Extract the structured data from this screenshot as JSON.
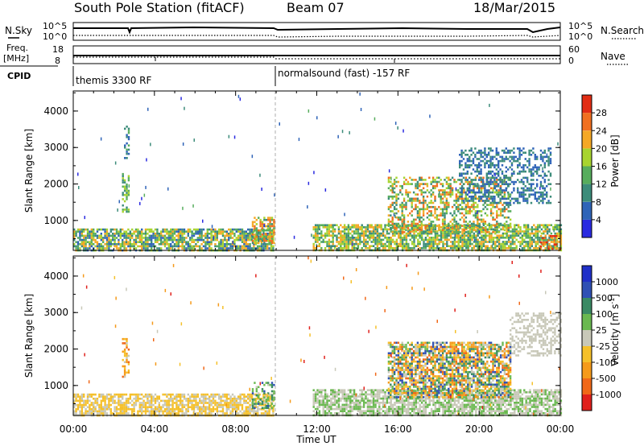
{
  "header": {
    "station": "South Pole Station (fitACF)",
    "beam": "Beam 07",
    "date": "18/Mar/2015"
  },
  "top_panels": {
    "nsky_label": "N.Sky",
    "nsky_ticks": [
      "10^5",
      "10^0"
    ],
    "nsearch_label": "N.Search",
    "nsearch_ticks": [
      "10^5",
      "10^0"
    ],
    "freq_label": "Freq.",
    "freq_unit": "[MHz]",
    "freq_ticks": [
      "18",
      "8"
    ],
    "nave_label": "Nave",
    "nave_ticks": [
      "60",
      "0"
    ],
    "cpid_label": "CPID",
    "cpid_segments": [
      "themis 3300 RF",
      "normalsound (fast) -157 RF"
    ]
  },
  "x_axis": {
    "label": "Time UT",
    "ticks": [
      "00:00",
      "04:00",
      "08:00",
      "12:00",
      "16:00",
      "20:00",
      "00:00"
    ]
  },
  "chart_data": [
    {
      "type": "heatmap",
      "name": "power",
      "xlabel": "Time UT",
      "ylabel": "Slant Range [km]",
      "x_ticks": [
        "00:00",
        "04:00",
        "08:00",
        "12:00",
        "16:00",
        "20:00",
        "00:00"
      ],
      "y_ticks": [
        "1000",
        "2000",
        "3000",
        "4000"
      ],
      "ylim": [
        180,
        4550
      ],
      "colorbar_label": "Power [dB]",
      "colorbar_ticks": [
        "4",
        "8",
        "12",
        "16",
        "20",
        "24",
        "28"
      ],
      "colorbar_range": [
        0,
        32
      ],
      "colors": [
        "#2a2ae0",
        "#2f64b8",
        "#3c8c7a",
        "#57ad5d",
        "#a8d42f",
        "#f5a825",
        "#f07020",
        "#e22d14"
      ],
      "regions": [
        {
          "x": [
            0.0,
            9.9
          ],
          "r": [
            180,
            780
          ],
          "level": [
            5,
            24
          ]
        },
        {
          "x": [
            2.4,
            2.75
          ],
          "r": [
            1250,
            2300
          ],
          "level": [
            8,
            20
          ]
        },
        {
          "x": [
            2.5,
            2.7
          ],
          "r": [
            2700,
            3600
          ],
          "level": [
            6,
            14
          ]
        },
        {
          "x": [
            8.8,
            9.9
          ],
          "r": [
            400,
            1100
          ],
          "level": [
            8,
            28
          ]
        },
        {
          "x": [
            11.8,
            24.0
          ],
          "r": [
            200,
            900
          ],
          "level": [
            8,
            24
          ]
        },
        {
          "x": [
            15.5,
            21.5
          ],
          "r": [
            700,
            2200
          ],
          "level": [
            8,
            28
          ]
        },
        {
          "x": [
            19.0,
            23.5
          ],
          "r": [
            1500,
            3000
          ],
          "level": [
            4,
            12
          ]
        },
        {
          "x": [
            23.0,
            24.0
          ],
          "r": [
            200,
            600
          ],
          "level": [
            20,
            32
          ]
        }
      ]
    },
    {
      "type": "heatmap",
      "name": "velocity",
      "xlabel": "Time UT",
      "ylabel": "Slant Range [km]",
      "x_ticks": [
        "00:00",
        "04:00",
        "08:00",
        "12:00",
        "16:00",
        "20:00",
        "00:00"
      ],
      "y_ticks": [
        "1000",
        "2000",
        "3000",
        "4000"
      ],
      "ylim": [
        180,
        4550
      ],
      "colorbar_label": "Velocity [m s^-1]",
      "colorbar_ticks": [
        "1000",
        "500",
        "100",
        "25",
        "-25",
        "-100",
        "-500",
        "-1000"
      ],
      "colorbar_range": [
        -1250,
        1250
      ],
      "colors": [
        "#e0201c",
        "#f06818",
        "#f59a1a",
        "#f5c02a",
        "#c8c8b8",
        "#6ab850",
        "#3a8a64",
        "#2f50b4",
        "#2030c8"
      ],
      "regions": [
        {
          "x": [
            0.0,
            9.9
          ],
          "r": [
            180,
            780
          ],
          "level": [
            -300,
            -25
          ]
        },
        {
          "x": [
            2.4,
            2.75
          ],
          "r": [
            1250,
            2300
          ],
          "level": [
            -800,
            -100
          ]
        },
        {
          "x": [
            8.8,
            9.9
          ],
          "r": [
            400,
            1100
          ],
          "level": [
            100,
            800
          ]
        },
        {
          "x": [
            11.8,
            24.0
          ],
          "r": [
            200,
            900
          ],
          "level": [
            -100,
            300
          ]
        },
        {
          "x": [
            15.5,
            21.5
          ],
          "r": [
            700,
            2200
          ],
          "level": [
            -900,
            900
          ]
        },
        {
          "x": [
            21.5,
            24.0
          ],
          "r": [
            1800,
            3000
          ],
          "level": [
            -25,
            25
          ]
        }
      ]
    }
  ]
}
